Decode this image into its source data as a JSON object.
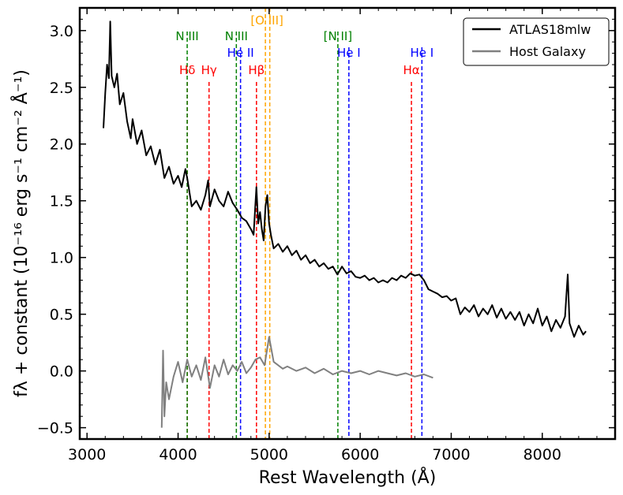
{
  "chart_data": {
    "type": "line",
    "xlabel": "Rest Wavelength (Å)",
    "ylabel": "fλ + constant (10⁻¹⁶ erg s⁻¹ cm⁻² Å⁻¹)",
    "xlim": [
      2920,
      8800
    ],
    "ylim": [
      -0.6,
      3.2
    ],
    "xticks": [
      3000,
      4000,
      5000,
      6000,
      7000,
      8000
    ],
    "yticks": [
      -0.5,
      0.0,
      0.5,
      1.0,
      1.5,
      2.0,
      2.5,
      3.0
    ],
    "xtick_labels": [
      "3000",
      "4000",
      "5000",
      "6000",
      "7000",
      "8000"
    ],
    "ytick_labels": [
      "−0.5",
      "0.0",
      "0.5",
      "1.0",
      "1.5",
      "2.0",
      "2.5",
      "3.0"
    ],
    "legend": {
      "position": "top-right"
    },
    "series": [
      {
        "name": "ATLAS18mlw",
        "color": "#000000",
        "points": [
          [
            3180,
            2.14
          ],
          [
            3200,
            2.45
          ],
          [
            3220,
            2.7
          ],
          [
            3240,
            2.58
          ],
          [
            3255,
            3.08
          ],
          [
            3270,
            2.6
          ],
          [
            3300,
            2.5
          ],
          [
            3330,
            2.62
          ],
          [
            3360,
            2.35
          ],
          [
            3400,
            2.45
          ],
          [
            3440,
            2.2
          ],
          [
            3480,
            2.05
          ],
          [
            3500,
            2.22
          ],
          [
            3550,
            2.0
          ],
          [
            3600,
            2.12
          ],
          [
            3650,
            1.9
          ],
          [
            3700,
            1.98
          ],
          [
            3750,
            1.82
          ],
          [
            3800,
            1.95
          ],
          [
            3850,
            1.7
          ],
          [
            3900,
            1.8
          ],
          [
            3950,
            1.65
          ],
          [
            4000,
            1.72
          ],
          [
            4040,
            1.62
          ],
          [
            4080,
            1.78
          ],
          [
            4100,
            1.7
          ],
          [
            4150,
            1.45
          ],
          [
            4200,
            1.5
          ],
          [
            4250,
            1.42
          ],
          [
            4300,
            1.55
          ],
          [
            4330,
            1.68
          ],
          [
            4350,
            1.45
          ],
          [
            4400,
            1.6
          ],
          [
            4450,
            1.5
          ],
          [
            4500,
            1.45
          ],
          [
            4550,
            1.58
          ],
          [
            4600,
            1.48
          ],
          [
            4650,
            1.42
          ],
          [
            4700,
            1.35
          ],
          [
            4750,
            1.32
          ],
          [
            4800,
            1.25
          ],
          [
            4830,
            1.2
          ],
          [
            4860,
            1.62
          ],
          [
            4880,
            1.3
          ],
          [
            4900,
            1.4
          ],
          [
            4920,
            1.25
          ],
          [
            4940,
            1.15
          ],
          [
            4960,
            1.45
          ],
          [
            4980,
            1.55
          ],
          [
            5000,
            1.3
          ],
          [
            5020,
            1.2
          ],
          [
            5050,
            1.08
          ],
          [
            5100,
            1.12
          ],
          [
            5150,
            1.05
          ],
          [
            5200,
            1.1
          ],
          [
            5250,
            1.02
          ],
          [
            5300,
            1.06
          ],
          [
            5350,
            0.98
          ],
          [
            5400,
            1.02
          ],
          [
            5450,
            0.95
          ],
          [
            5500,
            0.98
          ],
          [
            5550,
            0.92
          ],
          [
            5600,
            0.95
          ],
          [
            5650,
            0.9
          ],
          [
            5700,
            0.92
          ],
          [
            5750,
            0.85
          ],
          [
            5800,
            0.92
          ],
          [
            5850,
            0.86
          ],
          [
            5900,
            0.88
          ],
          [
            5950,
            0.83
          ],
          [
            6000,
            0.82
          ],
          [
            6050,
            0.84
          ],
          [
            6100,
            0.8
          ],
          [
            6150,
            0.82
          ],
          [
            6200,
            0.78
          ],
          [
            6250,
            0.8
          ],
          [
            6300,
            0.78
          ],
          [
            6350,
            0.82
          ],
          [
            6400,
            0.8
          ],
          [
            6450,
            0.84
          ],
          [
            6500,
            0.82
          ],
          [
            6550,
            0.86
          ],
          [
            6600,
            0.84
          ],
          [
            6650,
            0.85
          ],
          [
            6700,
            0.8
          ],
          [
            6750,
            0.72
          ],
          [
            6800,
            0.7
          ],
          [
            6850,
            0.68
          ],
          [
            6900,
            0.65
          ],
          [
            6950,
            0.66
          ],
          [
            7000,
            0.62
          ],
          [
            7050,
            0.64
          ],
          [
            7100,
            0.5
          ],
          [
            7150,
            0.56
          ],
          [
            7200,
            0.52
          ],
          [
            7250,
            0.58
          ],
          [
            7300,
            0.48
          ],
          [
            7350,
            0.55
          ],
          [
            7400,
            0.5
          ],
          [
            7450,
            0.58
          ],
          [
            7500,
            0.47
          ],
          [
            7550,
            0.55
          ],
          [
            7600,
            0.46
          ],
          [
            7650,
            0.52
          ],
          [
            7700,
            0.45
          ],
          [
            7750,
            0.52
          ],
          [
            7800,
            0.4
          ],
          [
            7850,
            0.5
          ],
          [
            7900,
            0.42
          ],
          [
            7950,
            0.55
          ],
          [
            8000,
            0.4
          ],
          [
            8050,
            0.48
          ],
          [
            8100,
            0.35
          ],
          [
            8150,
            0.45
          ],
          [
            8200,
            0.38
          ],
          [
            8250,
            0.48
          ],
          [
            8280,
            0.85
          ],
          [
            8300,
            0.42
          ],
          [
            8350,
            0.3
          ],
          [
            8400,
            0.4
          ],
          [
            8450,
            0.32
          ],
          [
            8480,
            0.35
          ]
        ]
      },
      {
        "name": "Host Galaxy",
        "color": "#808080",
        "points": [
          [
            3820,
            -0.5
          ],
          [
            3835,
            0.18
          ],
          [
            3850,
            -0.4
          ],
          [
            3870,
            -0.1
          ],
          [
            3900,
            -0.25
          ],
          [
            3950,
            -0.05
          ],
          [
            4000,
            0.08
          ],
          [
            4050,
            -0.1
          ],
          [
            4100,
            0.1
          ],
          [
            4150,
            -0.05
          ],
          [
            4200,
            0.05
          ],
          [
            4250,
            -0.08
          ],
          [
            4300,
            0.12
          ],
          [
            4350,
            -0.15
          ],
          [
            4400,
            0.05
          ],
          [
            4450,
            -0.05
          ],
          [
            4500,
            0.1
          ],
          [
            4550,
            -0.03
          ],
          [
            4600,
            0.05
          ],
          [
            4650,
            0.0
          ],
          [
            4700,
            0.08
          ],
          [
            4750,
            -0.02
          ],
          [
            4800,
            0.03
          ],
          [
            4850,
            0.1
          ],
          [
            4900,
            0.12
          ],
          [
            4950,
            0.05
          ],
          [
            5000,
            0.3
          ],
          [
            5050,
            0.08
          ],
          [
            5100,
            0.05
          ],
          [
            5150,
            0.02
          ],
          [
            5200,
            0.04
          ],
          [
            5300,
            0.0
          ],
          [
            5400,
            0.03
          ],
          [
            5500,
            -0.02
          ],
          [
            5600,
            0.02
          ],
          [
            5700,
            -0.03
          ],
          [
            5800,
            0.0
          ],
          [
            5900,
            -0.02
          ],
          [
            6000,
            0.0
          ],
          [
            6100,
            -0.03
          ],
          [
            6200,
            0.0
          ],
          [
            6300,
            -0.02
          ],
          [
            6400,
            -0.04
          ],
          [
            6500,
            -0.02
          ],
          [
            6600,
            -0.05
          ],
          [
            6700,
            -0.03
          ],
          [
            6800,
            -0.06
          ]
        ]
      }
    ],
    "reference_lines": [
      {
        "label": "Hδ",
        "x": 4101,
        "color": "#ff0000",
        "row": 3
      },
      {
        "label": "Hγ",
        "x": 4340,
        "color": "#ff0000",
        "row": 3
      },
      {
        "label": "Hβ",
        "x": 4861,
        "color": "#ff0000",
        "row": 3
      },
      {
        "label": "Hα",
        "x": 6563,
        "color": "#ff0000",
        "row": 3
      },
      {
        "label": "N III",
        "x": 4100,
        "color": "#008000",
        "row": 1
      },
      {
        "label": "N III",
        "x": 4640,
        "color": "#008000",
        "row": 1
      },
      {
        "label": "[N II]",
        "x": 5755,
        "color": "#008000",
        "row": 1
      },
      {
        "label": "He II",
        "x": 4686,
        "color": "#0000ff",
        "row": 2
      },
      {
        "label": "He I",
        "x": 5876,
        "color": "#0000ff",
        "row": 2
      },
      {
        "label": "He I",
        "x": 6678,
        "color": "#0000ff",
        "row": 2
      },
      {
        "label": "[O III]",
        "x": 4959,
        "color": "#ffa500",
        "row": 0
      },
      {
        "label": "",
        "x": 5007,
        "color": "#ffa500",
        "row": 0
      }
    ]
  }
}
